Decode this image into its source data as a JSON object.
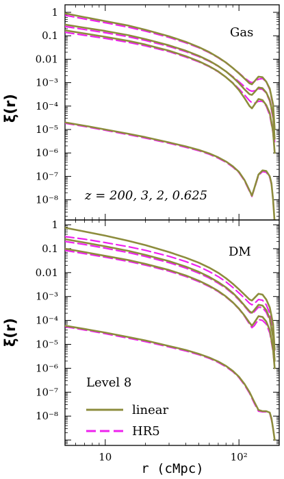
{
  "chart_data": [
    {
      "type": "line",
      "panel": "top",
      "annotation": "Gas",
      "annotation2": "z = 200, 3, 2, 0.625",
      "ylabel": "ξ(r)",
      "xlabel": "",
      "xscale": "log",
      "yscale": "log",
      "xlim": [
        5,
        200
      ],
      "ylim": [
        1e-09,
        2.5
      ],
      "ytick_labels": [
        "1",
        "0.1",
        "0.01",
        "10⁻³",
        "10⁻⁴",
        "10⁻⁵",
        "10⁻⁶",
        "10⁻⁷",
        "10⁻⁸"
      ],
      "series": [
        {
          "name": "linear",
          "group": "z=200",
          "color": "#8c8c3c",
          "dash": "solid",
          "x": [
            5,
            7,
            10,
            15,
            20,
            30,
            40,
            50,
            60,
            70,
            80,
            90,
            100,
            110,
            120,
            125,
            130,
            140,
            150,
            160,
            170,
            175,
            180,
            185
          ],
          "y": [
            2e-05,
            1.45e-05,
            1e-05,
            6.5e-06,
            4.7e-06,
            2.8e-06,
            1.9e-06,
            1.35e-06,
            9.5e-07,
            6.5e-07,
            4.3e-07,
            2.7e-07,
            1.55e-07,
            7e-08,
            2.5e-08,
            1.5e-08,
            3e-08,
            1.2e-07,
            1.8e-07,
            1.7e-07,
            1e-07,
            5e-08,
            1e-08,
            1e-09
          ]
        },
        {
          "name": "HR5",
          "group": "z=200",
          "color": "#ee22ee",
          "dash": "dashed",
          "x": [
            5,
            7,
            10,
            15,
            20,
            30,
            40,
            50,
            60,
            70,
            80,
            90,
            100,
            110,
            120,
            125,
            130,
            140,
            150,
            160,
            170,
            175,
            180,
            185
          ],
          "y": [
            1.85e-05,
            1.35e-05,
            9.3e-06,
            6e-06,
            4.3e-06,
            2.6e-06,
            1.75e-06,
            1.25e-06,
            8.8e-07,
            6e-07,
            4e-07,
            2.5e-07,
            1.45e-07,
            6.5e-08,
            2.3e-08,
            1.4e-08,
            2.8e-08,
            1.1e-07,
            1.6e-07,
            1.5e-07,
            9e-08,
            4.5e-08,
            1e-08,
            1e-09
          ]
        },
        {
          "name": "linear",
          "group": "z=3",
          "color": "#8c8c3c",
          "dash": "solid",
          "x": [
            5,
            7,
            10,
            15,
            20,
            30,
            40,
            50,
            60,
            70,
            80,
            90,
            100,
            110,
            120,
            125,
            130,
            140,
            150,
            160,
            170,
            180,
            185
          ],
          "y": [
            0.9,
            0.62,
            0.42,
            0.27,
            0.18,
            0.095,
            0.055,
            0.033,
            0.02,
            0.012,
            0.0072,
            0.0042,
            0.0025,
            0.0015,
            0.00093,
            0.00085,
            0.0011,
            0.0018,
            0.0017,
            0.0011,
            0.00055,
            0.00012,
            1e-05
          ]
        },
        {
          "name": "HR5",
          "group": "z=3",
          "color": "#ee22ee",
          "dash": "dashed",
          "x": [
            5,
            7,
            10,
            15,
            20,
            30,
            40,
            50,
            60,
            70,
            80,
            90,
            100,
            110,
            120,
            125,
            130,
            140,
            150,
            160,
            170,
            180,
            185
          ],
          "y": [
            0.75,
            0.52,
            0.36,
            0.23,
            0.158,
            0.085,
            0.05,
            0.031,
            0.019,
            0.0115,
            0.007,
            0.0042,
            0.0026,
            0.0016,
            0.0011,
            0.001,
            0.0011,
            0.0014,
            0.0015,
            0.0011,
            0.0005,
            0.0001,
            1e-05
          ]
        },
        {
          "name": "linear",
          "group": "z=2",
          "color": "#8c8c3c",
          "dash": "solid",
          "x": [
            5,
            7,
            10,
            15,
            20,
            30,
            40,
            50,
            60,
            70,
            80,
            90,
            100,
            110,
            120,
            125,
            130,
            140,
            150,
            160,
            170,
            180,
            185
          ],
          "y": [
            0.3,
            0.22,
            0.16,
            0.105,
            0.072,
            0.039,
            0.023,
            0.014,
            0.0085,
            0.0051,
            0.003,
            0.0017,
            0.00095,
            0.00052,
            0.00032,
            0.0003,
            0.00038,
            0.00062,
            0.00058,
            0.00038,
            0.00018,
            4e-05,
            4e-06
          ]
        },
        {
          "name": "HR5",
          "group": "z=2",
          "color": "#ee22ee",
          "dash": "dashed",
          "x": [
            5,
            7,
            10,
            15,
            20,
            30,
            40,
            50,
            60,
            70,
            80,
            90,
            100,
            110,
            120,
            125,
            130,
            140,
            150,
            160,
            170,
            180,
            185
          ],
          "y": [
            0.25,
            0.185,
            0.135,
            0.09,
            0.063,
            0.035,
            0.021,
            0.013,
            0.0081,
            0.005,
            0.003,
            0.0018,
            0.0011,
            0.00068,
            0.00047,
            0.00043,
            0.00045,
            0.00055,
            0.00052,
            0.00036,
            0.00016,
            3e-05,
            3e-06
          ]
        },
        {
          "name": "linear",
          "group": "z=0.625",
          "color": "#8c8c3c",
          "dash": "solid",
          "x": [
            5,
            7,
            10,
            15,
            20,
            30,
            40,
            50,
            60,
            70,
            80,
            90,
            100,
            110,
            120,
            125,
            130,
            140,
            150,
            160,
            170,
            180,
            185
          ],
          "y": [
            0.17,
            0.125,
            0.09,
            0.06,
            0.042,
            0.023,
            0.0135,
            0.0082,
            0.005,
            0.003,
            0.0017,
            0.00095,
            0.00048,
            0.00022,
            0.0001,
            8e-05,
            0.00011,
            0.0002,
            0.00018,
            0.00011,
            5e-05,
            8e-06,
            1e-06
          ]
        },
        {
          "name": "HR5",
          "group": "z=0.625",
          "color": "#ee22ee",
          "dash": "dashed",
          "x": [
            5,
            7,
            10,
            15,
            20,
            30,
            40,
            50,
            60,
            70,
            80,
            90,
            100,
            110,
            120,
            125,
            130,
            140,
            150,
            160,
            170,
            180,
            185
          ],
          "y": [
            0.14,
            0.105,
            0.077,
            0.052,
            0.037,
            0.021,
            0.0124,
            0.0077,
            0.0048,
            0.0029,
            0.0017,
            0.00098,
            0.00054,
            0.0003,
            0.00017,
            0.00014,
            0.00013,
            0.00016,
            0.00016,
            0.0001,
            4e-05,
            7e-06,
            1e-06
          ]
        }
      ]
    },
    {
      "type": "line",
      "panel": "bottom",
      "annotation": "DM",
      "annotation2": "Level 8",
      "ylabel": "ξ(r)",
      "xlabel": "r (cMpc)",
      "xscale": "log",
      "yscale": "log",
      "xlim": [
        5,
        200
      ],
      "ylim": [
        1e-09,
        2.5
      ],
      "ytick_labels": [
        "1",
        "0.1",
        "0.01",
        "10⁻³",
        "10⁻⁴",
        "10⁻⁵",
        "10⁻⁶",
        "10⁻⁷",
        "10⁻⁸"
      ],
      "xtick_labels": [
        "10",
        "10²"
      ],
      "legend": [
        {
          "label": "linear",
          "color": "#8c8c3c",
          "dash": "solid"
        },
        {
          "label": "HR5",
          "color": "#ee22ee",
          "dash": "dashed"
        }
      ],
      "legend_position": "bottom-left",
      "series": [
        {
          "name": "linear",
          "group": "z=200",
          "color": "#8c8c3c",
          "dash": "solid",
          "x": [
            5,
            7,
            10,
            15,
            20,
            30,
            40,
            50,
            60,
            70,
            80,
            90,
            100,
            110,
            120,
            130,
            140,
            150,
            160,
            170,
            175,
            180,
            185
          ],
          "y": [
            6e-05,
            4.4e-05,
            3.1e-05,
            2e-05,
            1.45e-05,
            8.5e-06,
            5.8e-06,
            4e-06,
            2.8e-06,
            1.9e-06,
            1.25e-06,
            7.7e-07,
            4.4e-07,
            2.2e-07,
            1e-07,
            4e-08,
            1.8e-08,
            1.6e-08,
            1.6e-08,
            1.4e-08,
            8e-09,
            3e-09,
            1e-09
          ]
        },
        {
          "name": "HR5",
          "group": "z=200",
          "color": "#ee22ee",
          "dash": "dashed",
          "x": [
            5,
            7,
            10,
            15,
            20,
            30,
            40,
            50,
            60,
            70,
            80,
            90,
            100,
            110,
            120,
            130,
            140,
            150,
            160,
            170,
            175,
            180,
            185
          ],
          "y": [
            5.5e-05,
            4e-05,
            2.8e-05,
            1.8e-05,
            1.3e-05,
            7.8e-06,
            5.3e-06,
            3.7e-06,
            2.6e-06,
            1.75e-06,
            1.15e-06,
            7.2e-07,
            4.1e-07,
            2e-07,
            9e-08,
            3.5e-08,
            1.6e-08,
            1.5e-08,
            1.5e-08,
            1.3e-08,
            7e-09,
            3e-09,
            1e-09
          ]
        },
        {
          "name": "linear",
          "group": "z=3",
          "color": "#8c8c3c",
          "dash": "solid",
          "x": [
            5,
            7,
            10,
            15,
            20,
            30,
            40,
            50,
            60,
            70,
            80,
            90,
            100,
            110,
            120,
            125,
            130,
            140,
            150,
            160,
            170,
            180,
            185
          ],
          "y": [
            0.75,
            0.52,
            0.35,
            0.21,
            0.14,
            0.072,
            0.042,
            0.026,
            0.016,
            0.0098,
            0.0058,
            0.0034,
            0.002,
            0.0012,
            0.00075,
            0.00068,
            0.00085,
            0.0013,
            0.0012,
            0.00075,
            0.00035,
            7e-05,
            6e-06
          ]
        },
        {
          "name": "HR5",
          "group": "z=3",
          "color": "#ee22ee",
          "dash": "dashed",
          "x": [
            5,
            7,
            10,
            15,
            20,
            30,
            40,
            50,
            60,
            70,
            80,
            90,
            100,
            110,
            120,
            125,
            130,
            140,
            150,
            160,
            170,
            180,
            185
          ],
          "y": [
            0.32,
            0.25,
            0.18,
            0.12,
            0.085,
            0.048,
            0.029,
            0.018,
            0.011,
            0.0068,
            0.0041,
            0.0024,
            0.0014,
            0.00085,
            0.00052,
            0.00045,
            0.0005,
            0.00075,
            0.0007,
            0.00045,
            0.0002,
            4e-05,
            4e-06
          ]
        },
        {
          "name": "linear",
          "group": "z=2",
          "color": "#8c8c3c",
          "dash": "solid",
          "x": [
            5,
            7,
            10,
            15,
            20,
            30,
            40,
            50,
            60,
            70,
            80,
            90,
            100,
            110,
            120,
            125,
            130,
            140,
            150,
            160,
            170,
            180,
            185
          ],
          "y": [
            0.25,
            0.18,
            0.125,
            0.08,
            0.055,
            0.03,
            0.0178,
            0.0108,
            0.0066,
            0.004,
            0.0024,
            0.0014,
            0.00078,
            0.00042,
            0.00024,
            0.00021,
            0.00027,
            0.00045,
            0.00042,
            0.00027,
            0.00012,
            2e-05,
            2e-06
          ]
        },
        {
          "name": "HR5",
          "group": "z=2",
          "color": "#ee22ee",
          "dash": "dashed",
          "x": [
            5,
            7,
            10,
            15,
            20,
            30,
            40,
            50,
            60,
            70,
            80,
            90,
            100,
            110,
            120,
            125,
            130,
            140,
            150,
            160,
            170,
            180,
            185
          ],
          "y": [
            0.2,
            0.15,
            0.105,
            0.068,
            0.047,
            0.026,
            0.0155,
            0.0095,
            0.0059,
            0.0036,
            0.0022,
            0.0013,
            0.00072,
            0.00039,
            0.00022,
            0.00019,
            0.00023,
            0.00036,
            0.00034,
            0.00022,
            0.0001,
            2e-05,
            2e-06
          ]
        },
        {
          "name": "linear",
          "group": "z=0.625",
          "color": "#8c8c3c",
          "dash": "solid",
          "x": [
            5,
            7,
            10,
            15,
            20,
            30,
            40,
            50,
            60,
            70,
            80,
            90,
            100,
            110,
            120,
            125,
            130,
            140,
            150,
            160,
            170,
            180,
            185
          ],
          "y": [
            0.1,
            0.072,
            0.05,
            0.033,
            0.023,
            0.0128,
            0.0076,
            0.0046,
            0.0028,
            0.0017,
            0.001,
            0.00057,
            0.00031,
            0.00016,
            8e-05,
            6e-05,
            8e-05,
            0.00015,
            0.00014,
            9e-05,
            4e-05,
            6e-06,
            1e-06
          ]
        },
        {
          "name": "HR5",
          "group": "z=0.625",
          "color": "#ee22ee",
          "dash": "dashed",
          "x": [
            5,
            7,
            10,
            15,
            20,
            30,
            40,
            50,
            60,
            70,
            80,
            90,
            100,
            110,
            120,
            125,
            130,
            140,
            150,
            160,
            170,
            180,
            185
          ],
          "y": [
            0.085,
            0.062,
            0.044,
            0.029,
            0.0205,
            0.0115,
            0.0069,
            0.0042,
            0.0026,
            0.0016,
            0.00095,
            0.00055,
            0.0003,
            0.00015,
            7e-05,
            5e-05,
            6e-05,
            0.00011,
            0.0001,
            7e-05,
            3e-05,
            5e-06,
            1e-06
          ]
        }
      ]
    }
  ]
}
